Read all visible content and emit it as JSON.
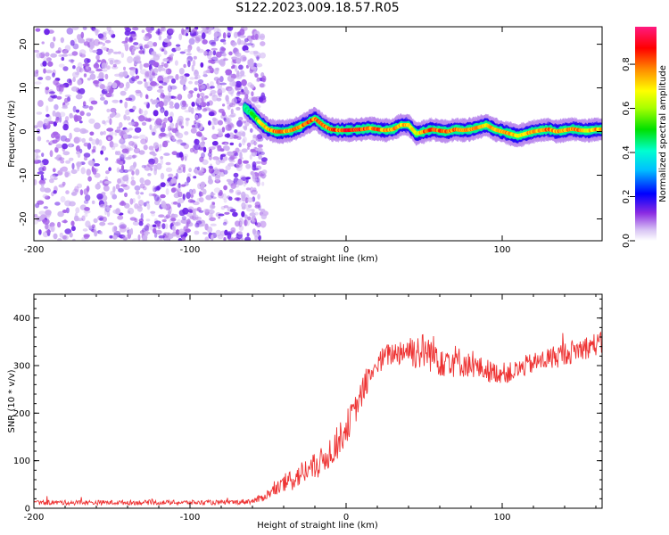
{
  "title": "S122.2023.009.18.57.R05",
  "chart_data": [
    {
      "type": "heatmap",
      "xlabel": "Height of straight line (km)",
      "ylabel": "Frequency (Hz)",
      "xlim": [
        -200,
        164
      ],
      "ylim": [
        -25,
        24
      ],
      "x_ticks": [
        "-200",
        "-100",
        "0",
        "100"
      ],
      "x_tick_values": [
        -200,
        -100,
        0,
        100
      ],
      "y_ticks": [
        "20",
        "10",
        "0",
        "-10",
        "-20"
      ],
      "y_tick_values": [
        20,
        10,
        0,
        -10,
        -20
      ],
      "colorbar": {
        "label": "Normalized spectral amplitude",
        "range": [
          0,
          0.97
        ],
        "ticks": [
          "0.0",
          "0.2",
          "0.4",
          "0.6",
          "0.8"
        ],
        "tick_values": [
          0,
          0.2,
          0.4,
          0.6,
          0.8
        ]
      },
      "noise_region_x": [
        -200,
        -55
      ],
      "ridge": {
        "x": [
          -65,
          -60,
          -55,
          -50,
          -45,
          -40,
          -35,
          -30,
          -25,
          -20,
          -15,
          -10,
          -5,
          0,
          5,
          10,
          15,
          20,
          25,
          30,
          35,
          40,
          45,
          50,
          55,
          60,
          65,
          70,
          75,
          80,
          85,
          90,
          95,
          100,
          105,
          110,
          115,
          120,
          125,
          130,
          135,
          140,
          145,
          150,
          155,
          160,
          164
        ],
        "frequency": [
          5.5,
          4,
          2,
          0.5,
          0,
          0,
          0.3,
          1,
          2,
          3,
          1.5,
          0.5,
          0.3,
          0.3,
          0.4,
          0.5,
          0.8,
          0.5,
          0.3,
          0.5,
          1.5,
          1.5,
          -0.5,
          0,
          0.5,
          0.2,
          0,
          0.5,
          0.3,
          0.5,
          1,
          1.5,
          0.5,
          0,
          -0.5,
          -1,
          -0.5,
          0,
          0.3,
          0.5,
          0,
          0.3,
          0.6,
          0.3,
          0.2,
          0.5,
          0.5
        ],
        "amplitude": [
          0.45,
          0.55,
          0.7,
          0.8,
          0.85,
          0.8,
          0.85,
          0.8,
          0.9,
          0.85,
          0.9,
          0.9,
          0.85,
          0.95,
          0.9,
          0.9,
          0.85,
          0.85,
          0.8,
          0.85,
          0.8,
          0.75,
          0.7,
          0.85,
          0.9,
          0.9,
          0.85,
          0.85,
          0.8,
          0.85,
          0.8,
          0.75,
          0.8,
          0.85,
          0.8,
          0.75,
          0.8,
          0.85,
          0.8,
          0.85,
          0.8,
          0.8,
          0.85,
          0.8,
          0.75,
          0.8,
          0.8
        ]
      }
    },
    {
      "type": "line",
      "xlabel": "Height of straight line (km)",
      "ylabel": "SNR (10 * v/v)",
      "xlim": [
        -200,
        164
      ],
      "ylim": [
        0,
        450
      ],
      "x_ticks": [
        "-200",
        "-100",
        "0",
        "100"
      ],
      "x_tick_values": [
        -200,
        -100,
        0,
        100
      ],
      "y_ticks": [
        "0",
        "100",
        "200",
        "300",
        "400"
      ],
      "y_tick_values": [
        0,
        100,
        200,
        300,
        400
      ],
      "color": "#ee3333",
      "series": [
        {
          "x": [
            -200,
            -190,
            -180,
            -170,
            -160,
            -150,
            -140,
            -130,
            -120,
            -110,
            -100,
            -90,
            -80,
            -70,
            -60,
            -55,
            -50,
            -45,
            -40,
            -35,
            -30,
            -25,
            -20,
            -15,
            -10,
            -5,
            0,
            5,
            10,
            15,
            20,
            25,
            30,
            35,
            40,
            45,
            50,
            55,
            60,
            65,
            70,
            75,
            80,
            85,
            90,
            95,
            100,
            105,
            110,
            115,
            120,
            125,
            130,
            135,
            140,
            145,
            150,
            155,
            160,
            164
          ],
          "y": [
            12,
            12,
            12,
            12,
            12,
            12,
            12,
            12,
            12,
            12,
            12,
            12,
            12,
            13,
            15,
            20,
            30,
            40,
            50,
            60,
            70,
            80,
            85,
            100,
            120,
            140,
            170,
            200,
            240,
            280,
            300,
            320,
            325,
            330,
            335,
            330,
            330,
            325,
            320,
            315,
            310,
            305,
            300,
            295,
            290,
            285,
            285,
            285,
            290,
            300,
            305,
            310,
            315,
            320,
            325,
            330,
            335,
            340,
            345,
            345
          ],
          "noise_amplitude": [
            5,
            5,
            5,
            5,
            5,
            5,
            5,
            5,
            5,
            5,
            5,
            5,
            5,
            5,
            6,
            8,
            10,
            15,
            20,
            25,
            25,
            30,
            30,
            30,
            35,
            35,
            35,
            30,
            30,
            28,
            25,
            25,
            25,
            30,
            35,
            40,
            40,
            40,
            45,
            40,
            35,
            30,
            25,
            25,
            25,
            22,
            22,
            22,
            22,
            22,
            22,
            22,
            25,
            25,
            25,
            25,
            25,
            25,
            25,
            25
          ]
        }
      ]
    }
  ]
}
